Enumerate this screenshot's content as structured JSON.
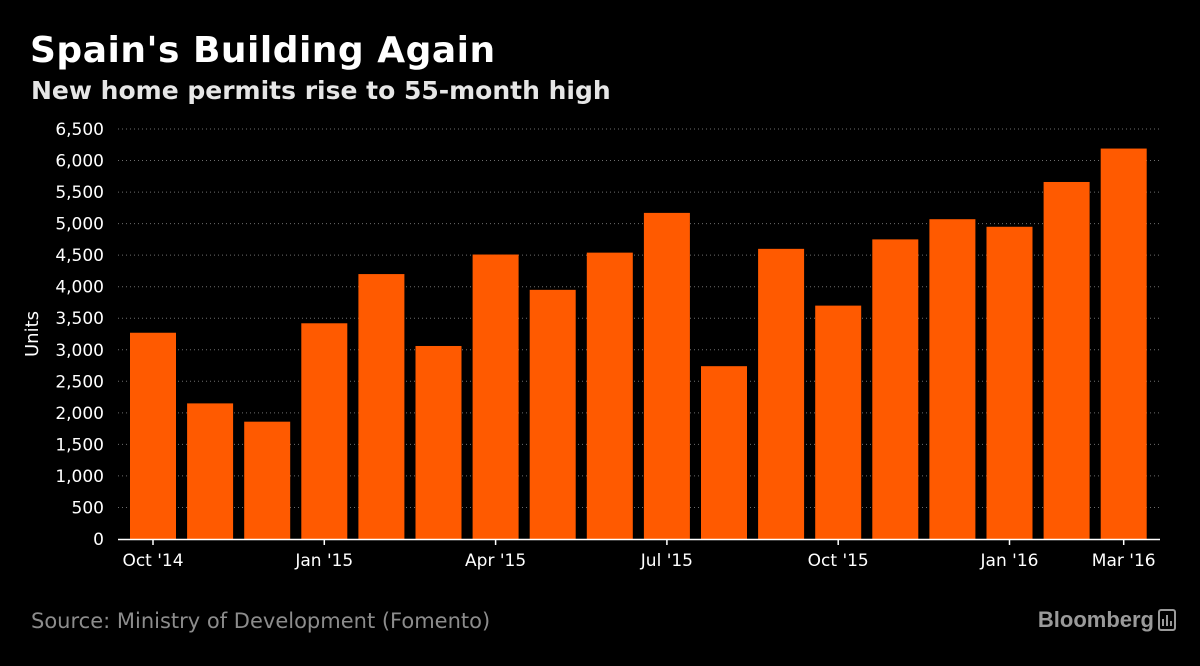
{
  "header": {
    "title": "Spain's Building Again",
    "subtitle": "New home permits rise to 55-month high"
  },
  "footer": {
    "source": "Source: Ministry of Development (Fomento)",
    "brand": "Bloomberg"
  },
  "colors": {
    "bar": "#ff5a00",
    "grid": "#6e6e6e",
    "axis": "#ffffff",
    "background": "#000000"
  },
  "chart_data": {
    "type": "bar",
    "title": "Spain's Building Again",
    "subtitle": "New home permits rise to 55-month high",
    "xlabel": "",
    "ylabel": "Units",
    "ylim": [
      0,
      6500
    ],
    "yticks": [
      0,
      500,
      1000,
      1500,
      2000,
      2500,
      3000,
      3500,
      4000,
      4500,
      5000,
      5500,
      6000,
      6500
    ],
    "ytick_labels": [
      "0",
      "500",
      "1,000",
      "1,500",
      "2,000",
      "2,500",
      "3,000",
      "3,500",
      "4,000",
      "4,500",
      "5,000",
      "5,500",
      "6,000",
      "6,500"
    ],
    "grid": true,
    "categories": [
      "Oct '14",
      "Nov '14",
      "Dec '14",
      "Jan '15",
      "Feb '15",
      "Mar '15",
      "Apr '15",
      "May '15",
      "Jun '15",
      "Jul '15",
      "Aug '15",
      "Sep '15",
      "Oct '15",
      "Nov '15",
      "Dec '15",
      "Jan '16",
      "Feb '16",
      "Mar '16"
    ],
    "values": [
      3270,
      2150,
      1860,
      3420,
      4200,
      3060,
      4510,
      3950,
      4540,
      5170,
      2740,
      4600,
      3700,
      4750,
      5070,
      4950,
      5660,
      6190
    ],
    "x_tick_labels": [
      {
        "index": 0,
        "label": "Oct '14"
      },
      {
        "index": 3,
        "label": "Jan '15"
      },
      {
        "index": 6,
        "label": "Apr '15"
      },
      {
        "index": 9,
        "label": "Jul '15"
      },
      {
        "index": 12,
        "label": "Oct '15"
      },
      {
        "index": 15,
        "label": "Jan '16"
      },
      {
        "index": 17,
        "label": "Mar '16"
      }
    ]
  }
}
